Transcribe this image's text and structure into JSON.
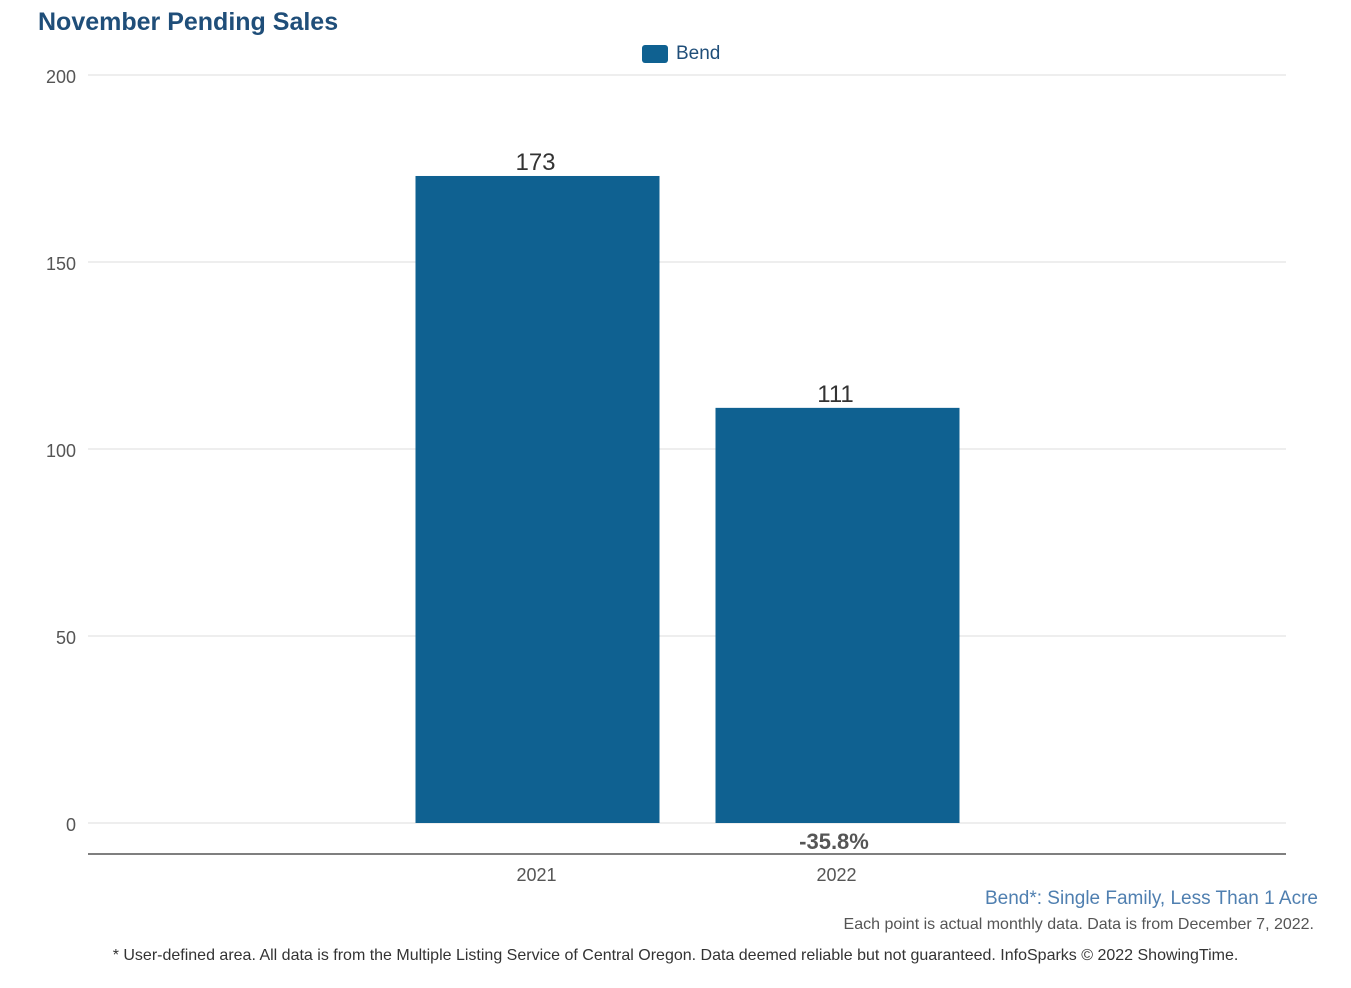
{
  "chart_data": {
    "type": "bar",
    "title": "November Pending Sales",
    "categories": [
      "2021",
      "2022"
    ],
    "series": [
      {
        "name": "Bend",
        "values": [
          173,
          111
        ],
        "data_labels": [
          "173",
          "111"
        ],
        "color": "#0f6191"
      }
    ],
    "change_label": "-35.8%",
    "yticks": [
      "0",
      "50",
      "100",
      "150",
      "200"
    ],
    "ylim": [
      0,
      200
    ],
    "grid": true,
    "legend_position": "top-center"
  },
  "footer": {
    "area_label": "Bend*: Single Family, Less Than 1 Acre",
    "note": "Each point is actual monthly data. Data is from December 7, 2022.",
    "disclaimer": "* User-defined area. All data is from the Multiple Listing Service of Central Oregon. Data deemed reliable but not guaranteed. InfoSparks © 2022 ShowingTime."
  }
}
